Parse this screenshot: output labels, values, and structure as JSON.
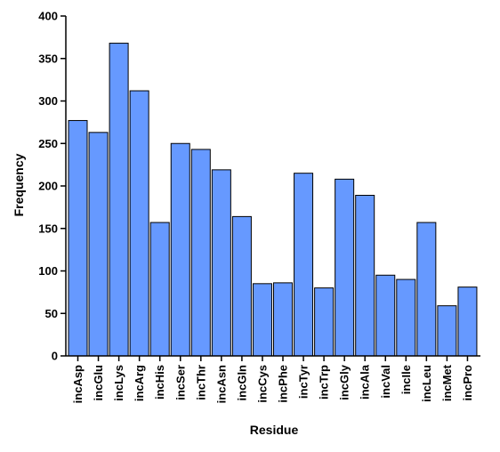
{
  "chart_data": {
    "type": "bar",
    "xlabel": "Residue",
    "ylabel": "Frequency",
    "ylim": [
      0,
      400
    ],
    "yticks": [
      0,
      50,
      100,
      150,
      200,
      250,
      300,
      350,
      400
    ],
    "categories": [
      "incAsp",
      "incGlu",
      "incLys",
      "incArg",
      "incHis",
      "incSer",
      "incThr",
      "incAsn",
      "incGln",
      "incCys",
      "incPhe",
      "incTyr",
      "incTrp",
      "incGly",
      "incAla",
      "incVal",
      "incIle",
      "incLeu",
      "incMet",
      "incPro"
    ],
    "values": [
      277,
      263,
      368,
      312,
      157,
      250,
      243,
      219,
      164,
      85,
      86,
      215,
      80,
      208,
      189,
      95,
      90,
      157,
      59,
      81
    ],
    "bar_color": "#6699ff",
    "bar_stroke": "#000000",
    "grid": false,
    "legend": "none"
  }
}
